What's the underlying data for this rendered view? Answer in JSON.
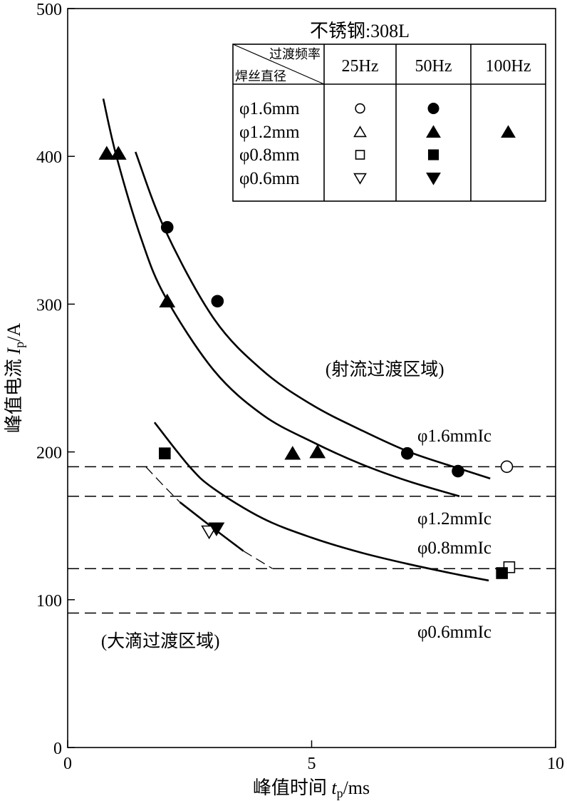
{
  "chart_data": {
    "type": "scatter",
    "title": "",
    "xlabel": "峰值时间 t_p/ms",
    "xlabel_parts": {
      "prefix": "峰值时间 ",
      "var": "t",
      "sub": "p",
      "unit": "/ms"
    },
    "ylabel": "峰值电流 I_p/A",
    "ylabel_parts": {
      "prefix": "峰值电流 ",
      "var": "I",
      "sub": "p",
      "unit": "/A"
    },
    "xlim": [
      0,
      10
    ],
    "ylim": [
      0,
      500
    ],
    "xticks": [
      0,
      5,
      10
    ],
    "yticks": [
      0,
      100,
      200,
      300,
      400,
      500
    ],
    "grid": false,
    "legend": {
      "placement": "top-right",
      "title": "不锈钢:308L",
      "corner_top": "过渡频率",
      "corner_bottom": "焊丝直径",
      "columns": [
        "25Hz",
        "50Hz",
        "100Hz"
      ],
      "rows": [
        "φ1.6mm",
        "φ1.2mm",
        "φ0.8mm",
        "φ0.6mm"
      ],
      "markers": [
        [
          "open-circle",
          "filled-circle",
          ""
        ],
        [
          "open-triangle",
          "filled-triangle",
          "filled-triangle"
        ],
        [
          "open-square",
          "filled-square",
          ""
        ],
        [
          "open-down-triangle",
          "filled-down-triangle",
          ""
        ]
      ]
    },
    "series": [
      {
        "name": "φ1.6mm 25Hz",
        "marker": "open-circle",
        "points": [
          [
            9.0,
            190
          ]
        ]
      },
      {
        "name": "φ1.6mm 50Hz",
        "marker": "filled-circle",
        "points": [
          [
            2.04,
            352
          ],
          [
            3.07,
            302
          ],
          [
            6.96,
            199
          ],
          [
            8.0,
            187
          ]
        ]
      },
      {
        "name": "φ1.2mm 50Hz/100Hz",
        "marker": "filled-triangle",
        "points": [
          [
            0.8,
            402
          ],
          [
            1.04,
            402
          ],
          [
            2.04,
            302
          ],
          [
            4.61,
            199
          ],
          [
            5.12,
            200
          ]
        ]
      },
      {
        "name": "φ0.8mm 25Hz",
        "marker": "open-square",
        "points": [
          [
            9.05,
            122
          ]
        ]
      },
      {
        "name": "φ0.8mm 50Hz",
        "marker": "filled-square",
        "points": [
          [
            1.99,
            199
          ],
          [
            8.9,
            118
          ]
        ]
      },
      {
        "name": "φ0.6mm 25Hz",
        "marker": "open-down-triangle",
        "points": [
          [
            2.9,
            146
          ]
        ]
      },
      {
        "name": "φ0.6mm 50Hz",
        "marker": "filled-down-triangle",
        "points": [
          [
            3.05,
            148
          ]
        ]
      }
    ],
    "curves": [
      {
        "name": "φ1.6mm fit",
        "style": "solid",
        "points": [
          [
            1.39,
            403
          ],
          [
            2,
            350
          ],
          [
            3,
            290
          ],
          [
            4,
            255
          ],
          [
            5,
            232
          ],
          [
            6,
            215
          ],
          [
            7,
            200
          ],
          [
            8,
            189
          ],
          [
            8.66,
            182
          ]
        ]
      },
      {
        "name": "φ1.2mm fit",
        "style": "solid",
        "points": [
          [
            0.73,
            439
          ],
          [
            1,
            400
          ],
          [
            1.5,
            345
          ],
          [
            2,
            305
          ],
          [
            3,
            255
          ],
          [
            4,
            225
          ],
          [
            5,
            207
          ],
          [
            6,
            192
          ],
          [
            7,
            180
          ],
          [
            8.03,
            170
          ]
        ]
      },
      {
        "name": "φ0.8mm fit",
        "style": "solid",
        "points": [
          [
            1.78,
            220
          ],
          [
            2.5,
            190
          ],
          [
            3,
            175
          ],
          [
            4,
            155
          ],
          [
            5,
            142
          ],
          [
            6,
            132
          ],
          [
            7,
            124
          ],
          [
            8,
            117
          ],
          [
            8.63,
            113
          ]
        ]
      },
      {
        "name": "φ0.6mm fit (dashed start)",
        "style": "dashed",
        "points": [
          [
            1.6,
            190
          ],
          [
            2.0,
            176
          ],
          [
            2.3,
            166
          ]
        ]
      },
      {
        "name": "φ0.6mm fit",
        "style": "solid",
        "points": [
          [
            2.3,
            166
          ],
          [
            3.0,
            148
          ],
          [
            3.6,
            133
          ]
        ]
      },
      {
        "name": "φ0.6mm fit (dashed end)",
        "style": "dashed",
        "points": [
          [
            3.6,
            133
          ],
          [
            4.2,
            121
          ]
        ]
      }
    ],
    "thresholds": [
      {
        "label": "φ1.6mmIc",
        "value": 190
      },
      {
        "label": "φ1.2mmIc",
        "value": 170
      },
      {
        "label": "φ0.8mmIc",
        "value": 121
      },
      {
        "label": "φ0.6mmIc",
        "value": 91
      }
    ],
    "annotations": [
      {
        "text": "(射流过渡区域)",
        "x": 6.5,
        "y": 252
      },
      {
        "text": "(大滴过渡区域)",
        "x": 1.9,
        "y": 68
      }
    ]
  }
}
